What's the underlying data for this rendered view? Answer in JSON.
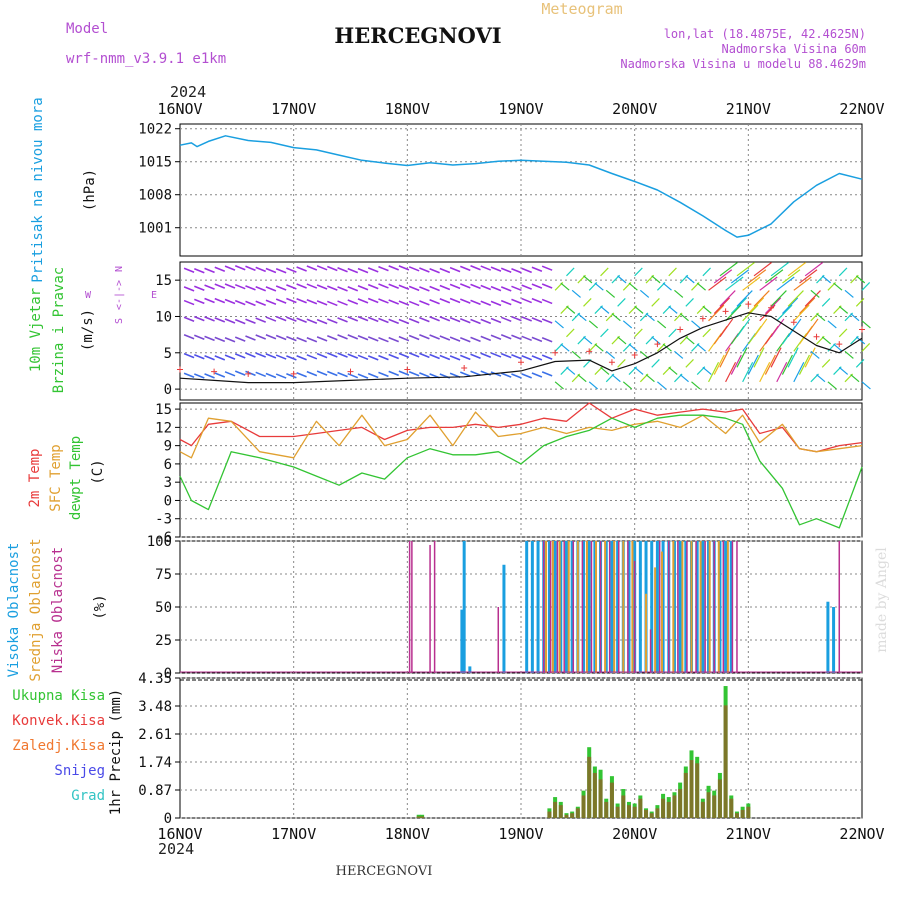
{
  "header": {
    "model_label": "Model",
    "model_name": "wrf-nmm_v3.9.1 e1km",
    "title": "HERCEGNOVI",
    "meteogram_label": "Meteogram",
    "lonlat": "lon,lat (18.4875E, 42.4625N)",
    "altitude": "Nadmorska Visina 60m",
    "model_altitude": "Nadmorska Visina u modelu 88.4629m",
    "year": "2024",
    "footer_title": "HERCEGNOVI",
    "watermark": "made by Angel"
  },
  "colors": {
    "pressure": "#1a9fe0",
    "temp2m": "#e83b3b",
    "sfctemp": "#e0a030",
    "dewpoint": "#33c433",
    "high_cloud": "#1a9fe0",
    "mid_cloud": "#e0a030",
    "low_cloud": "#b8308f",
    "total_precip": "#33c433",
    "conv_precip": "#e83b3b",
    "frozen_precip": "#f07830",
    "snow": "#4a4ae8",
    "graupel": "#33c4c4"
  },
  "chart_data": [
    {
      "type": "line",
      "panel": "pressure",
      "ylabel_lines": [
        "Pritisak na nivou mora",
        "(hPa)"
      ],
      "x_ticks": [
        "16NOV",
        "17NOV",
        "18NOV",
        "19NOV",
        "20NOV",
        "21NOV",
        "22NOV"
      ],
      "y_ticks": [
        "1022",
        "1015",
        "1008",
        "1001"
      ],
      "ylim": [
        995,
        1023
      ],
      "series": [
        {
          "x": [
            0,
            0.1,
            0.15,
            0.25,
            0.4,
            0.6,
            0.8,
            1.0,
            1.2,
            1.4,
            1.6,
            1.8,
            2.0,
            2.2,
            2.4,
            2.6,
            2.8,
            3.0,
            3.2,
            3.4,
            3.6,
            3.8,
            4.0,
            4.2,
            4.4,
            4.6,
            4.8,
            4.9,
            5.0,
            5.2,
            5.4,
            5.6,
            5.8,
            6.0
          ],
          "values": [
            1018.5,
            1019.0,
            1018.2,
            1019.3,
            1020.5,
            1019.5,
            1019.1,
            1018.0,
            1017.5,
            1016.4,
            1015.3,
            1014.7,
            1014.2,
            1014.8,
            1014.3,
            1014.6,
            1015.1,
            1015.3,
            1015.1,
            1014.9,
            1014.3,
            1012.5,
            1010.8,
            1009.0,
            1006.4,
            1003.5,
            1000.4,
            999.0,
            999.4,
            1001.8,
            1006.5,
            1010.0,
            1012.5,
            1011.3
          ]
        }
      ]
    },
    {
      "type": "line",
      "panel": "wind",
      "ylabel_lines": [
        "10m Vjetar",
        "Brzina i Pravac",
        "(m/s)"
      ],
      "compass": [
        "N",
        "W",
        "<-|->",
        "E",
        "S"
      ],
      "y_ticks": [
        "15",
        "10",
        "5",
        "0"
      ],
      "ylim": [
        -1.5,
        17.5
      ],
      "series": [
        {
          "name": "speed",
          "x": [
            0,
            0.3,
            0.6,
            1.0,
            1.5,
            2.0,
            2.5,
            3.0,
            3.3,
            3.6,
            3.8,
            4.0,
            4.2,
            4.4,
            4.6,
            4.8,
            5.0,
            5.2,
            5.4,
            5.6,
            5.8,
            6.0
          ],
          "values": [
            1.5,
            1.2,
            0.9,
            0.9,
            1.2,
            1.5,
            1.7,
            2.5,
            3.8,
            4.0,
            2.5,
            3.5,
            5.0,
            7.0,
            8.5,
            9.5,
            10.5,
            10.0,
            8.0,
            6.0,
            5.0,
            7.0
          ]
        }
      ]
    },
    {
      "type": "line",
      "panel": "temperature",
      "ylabel_lines": [
        "2m Temp",
        "SFC Temp",
        "dewpt Temp",
        "(C)"
      ],
      "y_ticks": [
        "15",
        "12",
        "9",
        "6",
        "3",
        "0",
        "-3",
        "-6"
      ],
      "ylim": [
        -6,
        16
      ],
      "x": [
        0,
        0.1,
        0.25,
        0.45,
        0.7,
        1.0,
        1.2,
        1.4,
        1.6,
        1.8,
        2.0,
        2.2,
        2.4,
        2.6,
        2.8,
        3.0,
        3.2,
        3.4,
        3.6,
        3.8,
        4.0,
        4.2,
        4.4,
        4.6,
        4.8,
        4.95,
        5.1,
        5.3,
        5.45,
        5.6,
        5.8,
        6.0
      ],
      "series": [
        {
          "name": "2m Temp",
          "values": [
            10.0,
            9.0,
            12.5,
            13.0,
            10.5,
            10.5,
            11.0,
            11.5,
            12.0,
            10.0,
            11.5,
            12.0,
            12.0,
            12.5,
            12.0,
            12.5,
            13.5,
            13.0,
            16.0,
            13.5,
            15.0,
            14.0,
            14.5,
            15.0,
            14.5,
            15.0,
            11.0,
            12.0,
            8.5,
            8.0,
            9.0,
            9.5
          ]
        },
        {
          "name": "SFC Temp",
          "values": [
            8.0,
            7.0,
            13.5,
            13.0,
            8.0,
            7.0,
            13.0,
            9.0,
            14.0,
            9.0,
            10.0,
            14.0,
            9.0,
            14.5,
            10.5,
            11.0,
            12.0,
            11.0,
            12.0,
            11.5,
            12.5,
            13.0,
            12.0,
            14.0,
            11.0,
            14.0,
            9.5,
            12.5,
            8.5,
            8.0,
            8.5,
            9.0
          ]
        },
        {
          "name": "dewpt Temp",
          "values": [
            4.0,
            0.0,
            -1.5,
            8.0,
            7.0,
            5.5,
            4.0,
            2.5,
            4.5,
            3.5,
            7.0,
            8.5,
            7.5,
            7.5,
            8.0,
            6.0,
            9.0,
            10.5,
            11.5,
            13.5,
            12.0,
            13.5,
            14.0,
            14.0,
            13.5,
            12.5,
            6.5,
            2.0,
            -4.0,
            -3.0,
            -4.5,
            5.5
          ]
        }
      ]
    },
    {
      "type": "bar",
      "panel": "clouds",
      "ylabel_lines": [
        "Visoka Oblacnost",
        "Srednja Oblacnost",
        "Niska Oblacnost",
        "(%)"
      ],
      "y_ticks": [
        "100",
        "75",
        "50",
        "25",
        "0"
      ],
      "ylim": [
        0,
        100
      ],
      "series": [
        {
          "name": "Visoka Oblacnost",
          "x": [
            2.48,
            2.5,
            2.55,
            2.85,
            3.05,
            3.1,
            3.15,
            3.2,
            3.25,
            3.3,
            3.35,
            3.4,
            3.45,
            3.5,
            3.55,
            3.6,
            3.65,
            3.7,
            3.75,
            3.8,
            3.85,
            3.9,
            3.95,
            4.0,
            4.05,
            4.1,
            4.15,
            4.2,
            4.25,
            4.3,
            4.35,
            4.4,
            4.45,
            4.5,
            4.55,
            4.6,
            4.65,
            4.7,
            4.75,
            4.8,
            4.85,
            5.7,
            5.75
          ],
          "values": [
            48,
            100,
            5,
            82,
            100,
            100,
            100,
            100,
            100,
            100,
            100,
            100,
            100,
            100,
            100,
            100,
            100,
            100,
            100,
            100,
            100,
            100,
            100,
            100,
            100,
            100,
            100,
            100,
            100,
            100,
            100,
            100,
            100,
            100,
            100,
            100,
            100,
            100,
            100,
            100,
            100,
            54,
            50
          ]
        },
        {
          "name": "Srednja Oblacnost",
          "x": [
            3.22,
            3.28,
            3.34,
            3.42,
            3.5,
            3.58,
            3.66,
            3.74,
            3.82,
            3.9,
            3.98,
            4.1,
            4.18,
            4.24,
            4.34,
            4.42,
            4.5,
            4.58,
            4.66,
            4.74,
            4.82
          ],
          "values": [
            100,
            100,
            100,
            100,
            100,
            100,
            100,
            100,
            100,
            100,
            100,
            60,
            80,
            92,
            100,
            100,
            100,
            100,
            100,
            100,
            100
          ]
        },
        {
          "name": "Niska Oblacnost",
          "x": [
            2.02,
            2.04,
            2.2,
            2.24,
            2.8,
            3.2,
            3.26,
            3.32,
            3.38,
            3.46,
            3.54,
            3.62,
            3.7,
            3.78,
            3.86,
            3.94,
            4.0,
            4.14,
            4.22,
            4.3,
            4.38,
            4.46,
            4.54,
            4.62,
            4.7,
            4.78,
            4.86,
            4.9,
            5.8
          ],
          "values": [
            100,
            100,
            97,
            100,
            50,
            100,
            100,
            100,
            100,
            100,
            100,
            100,
            100,
            100,
            100,
            100,
            85,
            33,
            100,
            100,
            100,
            100,
            100,
            100,
            100,
            100,
            100,
            100,
            100
          ]
        }
      ]
    },
    {
      "type": "bar",
      "panel": "precipitation",
      "ylabel_lines": [
        "1hr Precip (mm)"
      ],
      "legend": [
        "Ukupna Kisa",
        "Konvek.Kisa",
        "Zaledj.Kisa",
        "Snijeg",
        "Grad"
      ],
      "y_ticks": [
        "4.35",
        "3.48",
        "2.61",
        "1.74",
        "0.87",
        "0"
      ],
      "ylim": [
        0,
        4.35
      ],
      "x": [
        2.1,
        2.13,
        3.25,
        3.3,
        3.35,
        3.4,
        3.45,
        3.5,
        3.55,
        3.6,
        3.65,
        3.7,
        3.75,
        3.8,
        3.85,
        3.9,
        3.95,
        4.0,
        4.05,
        4.1,
        4.15,
        4.2,
        4.25,
        4.3,
        4.35,
        4.4,
        4.45,
        4.5,
        4.55,
        4.6,
        4.65,
        4.7,
        4.75,
        4.8,
        4.85,
        4.9,
        4.95,
        5.0
      ],
      "series": [
        {
          "name": "Ukupna Kisa",
          "values": [
            0.1,
            0.1,
            0.3,
            0.65,
            0.5,
            0.15,
            0.2,
            0.35,
            0.85,
            2.2,
            1.6,
            1.5,
            0.6,
            1.3,
            0.45,
            0.9,
            0.5,
            0.45,
            0.7,
            0.3,
            0.2,
            0.4,
            0.75,
            0.65,
            0.8,
            1.1,
            1.6,
            2.1,
            1.9,
            0.6,
            1.0,
            0.85,
            1.4,
            4.1,
            0.7,
            0.2,
            0.35,
            0.45
          ]
        },
        {
          "name": "Konvek.Kisa",
          "values": [
            0.05,
            0.05,
            0.2,
            0.5,
            0.4,
            0.1,
            0.15,
            0.3,
            0.7,
            1.9,
            1.4,
            1.2,
            0.5,
            1.1,
            0.35,
            0.7,
            0.4,
            0.35,
            0.6,
            0.25,
            0.15,
            0.3,
            0.6,
            0.5,
            0.7,
            0.9,
            1.4,
            1.8,
            1.7,
            0.5,
            0.8,
            0.7,
            1.2,
            3.5,
            0.6,
            0.15,
            0.25,
            0.35
          ]
        }
      ]
    }
  ]
}
